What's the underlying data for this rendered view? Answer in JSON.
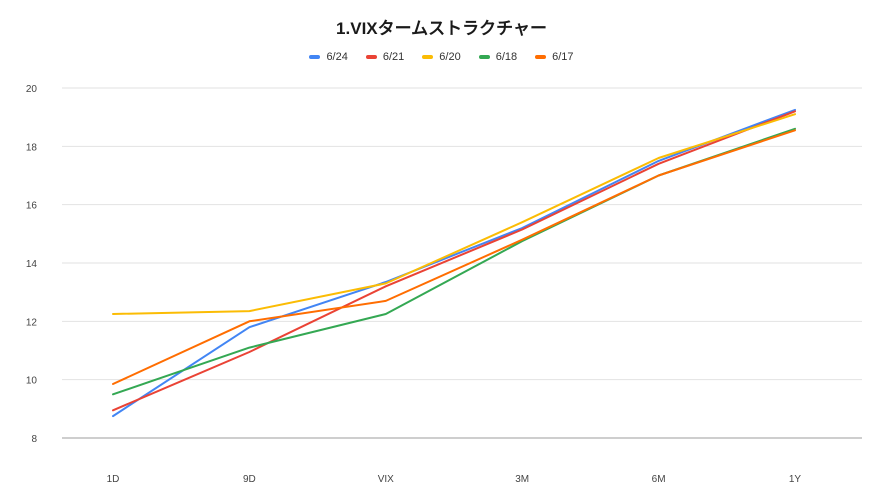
{
  "chart_data": {
    "type": "line",
    "title": "1.VIXタームストラクチャー",
    "xlabel": "",
    "ylabel": "",
    "categories": [
      "1D",
      "9D",
      "VIX",
      "3M",
      "6M",
      "1Y"
    ],
    "ylim": [
      8,
      20
    ],
    "yticks": [
      8,
      10,
      12,
      14,
      16,
      18,
      20
    ],
    "grid": true,
    "legend": "top-center",
    "series": [
      {
        "name": "6/24",
        "color": "#4285f4",
        "values": [
          8.75,
          11.8,
          13.35,
          15.2,
          17.5,
          19.25
        ]
      },
      {
        "name": "6/21",
        "color": "#ea4335",
        "values": [
          8.95,
          10.95,
          13.2,
          15.15,
          17.4,
          19.2
        ]
      },
      {
        "name": "6/20",
        "color": "#fbbc04",
        "values": [
          12.25,
          12.35,
          13.3,
          15.4,
          17.6,
          19.1
        ]
      },
      {
        "name": "6/18",
        "color": "#34a853",
        "values": [
          9.5,
          11.1,
          12.25,
          14.75,
          17.0,
          18.6
        ]
      },
      {
        "name": "6/17",
        "color": "#ff6d01",
        "values": [
          9.85,
          12.0,
          12.7,
          14.8,
          17.0,
          18.55
        ]
      }
    ]
  }
}
